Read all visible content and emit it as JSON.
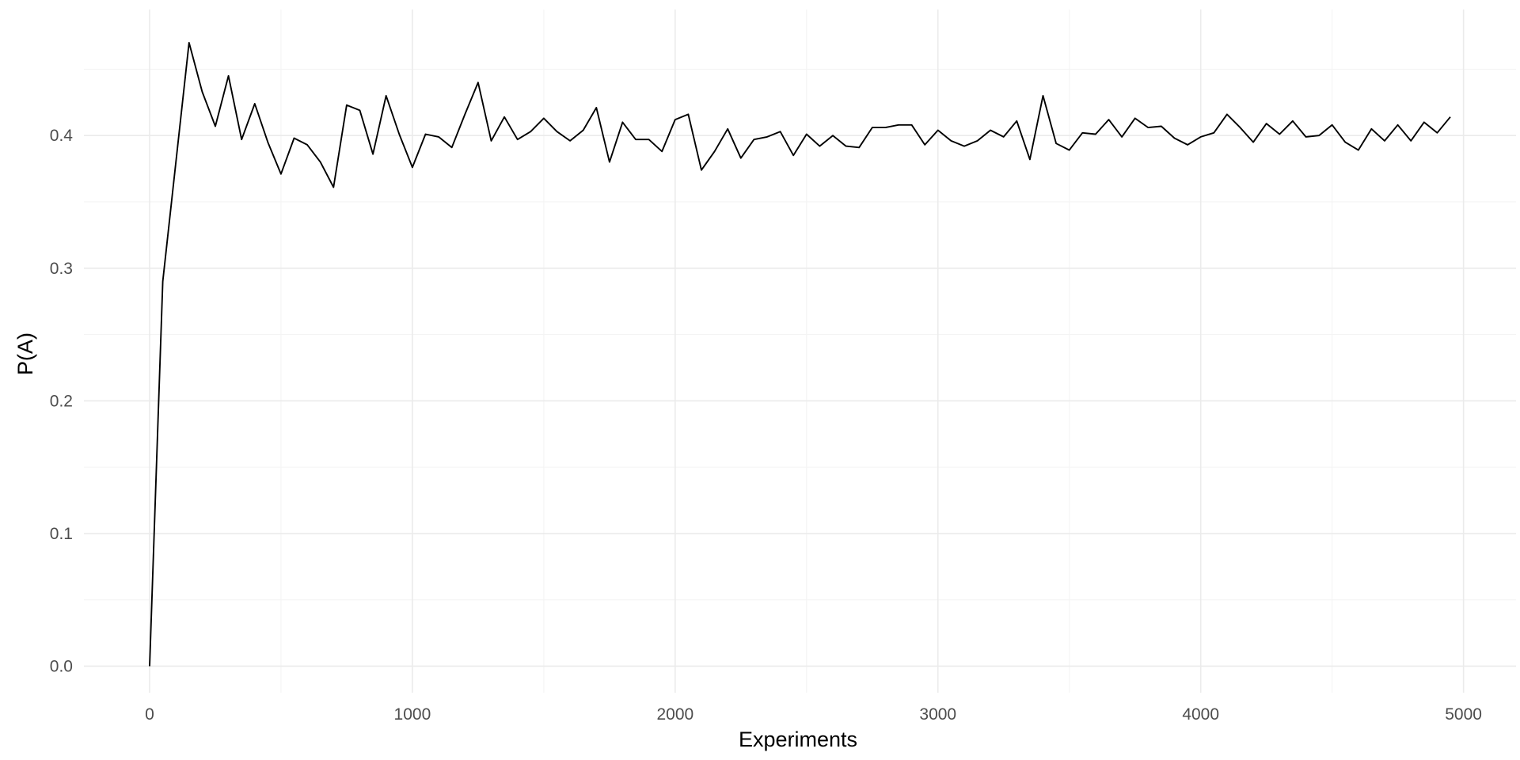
{
  "chart_data": {
    "type": "line",
    "title": "",
    "xlabel": "Experiments",
    "ylabel": "P(A)",
    "xlim": [
      -250,
      5200
    ],
    "ylim": [
      -0.02,
      0.495
    ],
    "x_ticks": [
      0,
      1000,
      2000,
      3000,
      4000,
      5000
    ],
    "x_tick_labels": [
      "0",
      "1000",
      "2000",
      "3000",
      "4000",
      "5000"
    ],
    "x_minor_ticks": [
      500,
      1500,
      2500,
      3500,
      4500
    ],
    "y_ticks": [
      0.0,
      0.1,
      0.2,
      0.3,
      0.4
    ],
    "y_tick_labels": [
      "0.0",
      "0.1",
      "0.2",
      "0.3",
      "0.4"
    ],
    "y_minor_ticks": [
      0.05,
      0.15,
      0.25,
      0.35,
      0.45
    ],
    "grid": true,
    "line_color": "#000000",
    "series": [
      {
        "x": [
          0,
          50,
          100,
          150,
          200,
          250,
          300,
          350,
          400,
          450,
          500,
          550,
          600,
          650,
          700,
          750,
          800,
          850,
          900,
          950,
          1000,
          1050,
          1100,
          1150,
          1200,
          1250,
          1300,
          1350,
          1400,
          1450,
          1500,
          1550,
          1600,
          1650,
          1700,
          1750,
          1800,
          1850,
          1900,
          1950,
          2000,
          2050,
          2100,
          2150,
          2200,
          2250,
          2300,
          2350,
          2400,
          2450,
          2500,
          2550,
          2600,
          2650,
          2700,
          2750,
          2800,
          2850,
          2900,
          2950,
          3000,
          3050,
          3100,
          3150,
          3200,
          3250,
          3300,
          3350,
          3400,
          3450,
          3500,
          3550,
          3600,
          3650,
          3700,
          3750,
          3800,
          3850,
          3900,
          3950,
          4000,
          4050,
          4100,
          4150,
          4200,
          4250,
          4300,
          4350,
          4400,
          4450,
          4500,
          4550,
          4600,
          4650,
          4700,
          4750,
          4800,
          4850,
          4900,
          4950
        ],
        "values": [
          0.0,
          0.29,
          0.38,
          0.47,
          0.433,
          0.407,
          0.445,
          0.397,
          0.424,
          0.395,
          0.371,
          0.398,
          0.393,
          0.38,
          0.361,
          0.423,
          0.419,
          0.386,
          0.43,
          0.401,
          0.376,
          0.401,
          0.399,
          0.391,
          0.416,
          0.44,
          0.396,
          0.414,
          0.397,
          0.403,
          0.413,
          0.403,
          0.396,
          0.404,
          0.421,
          0.38,
          0.41,
          0.397,
          0.397,
          0.388,
          0.412,
          0.416,
          0.374,
          0.388,
          0.405,
          0.383,
          0.397,
          0.399,
          0.403,
          0.385,
          0.401,
          0.392,
          0.4,
          0.392,
          0.391,
          0.406,
          0.406,
          0.408,
          0.408,
          0.393,
          0.404,
          0.396,
          0.392,
          0.396,
          0.404,
          0.399,
          0.411,
          0.382,
          0.43,
          0.394,
          0.389,
          0.402,
          0.401,
          0.412,
          0.399,
          0.413,
          0.406,
          0.407,
          0.398,
          0.393,
          0.399,
          0.402,
          0.416,
          0.406,
          0.395,
          0.409,
          0.401,
          0.411,
          0.399,
          0.4,
          0.408,
          0.395,
          0.389,
          0.405,
          0.396,
          0.408,
          0.396,
          0.41,
          0.402,
          0.414
        ]
      }
    ]
  }
}
